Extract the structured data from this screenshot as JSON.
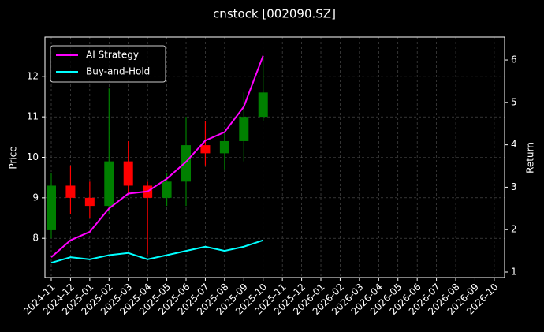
{
  "chart_data": {
    "type": "candlestick",
    "title": "cnstock [002090.SZ]",
    "ylabel": "Price",
    "y2label": "Return",
    "x": [
      "2024-11",
      "2024-12",
      "2025-01",
      "2025-02",
      "2025-03",
      "2025-04",
      "2025-05",
      "2025-06",
      "2025-07",
      "2025-08",
      "2025-09",
      "2025-10"
    ],
    "open": [
      8.2,
      9.3,
      9.0,
      8.8,
      9.9,
      9.3,
      9.0,
      9.4,
      10.3,
      10.1,
      10.4,
      11.0
    ],
    "high": [
      9.6,
      9.8,
      9.4,
      11.7,
      10.4,
      9.4,
      9.6,
      11.0,
      10.9,
      10.6,
      11.6,
      12.5
    ],
    "low": [
      8.0,
      8.6,
      8.5,
      8.6,
      9.1,
      7.6,
      8.8,
      8.8,
      9.8,
      9.7,
      9.9,
      10.9
    ],
    "close": [
      9.3,
      9.0,
      8.8,
      9.9,
      9.3,
      9.0,
      9.4,
      10.3,
      10.1,
      10.4,
      11.0,
      11.6
    ],
    "up_color": "#008000",
    "down_color": "#ff0000",
    "series": [
      {
        "name": "AI Strategy",
        "color": "#ff00ff",
        "axis": "y2",
        "values": [
          1.35,
          1.75,
          1.95,
          2.5,
          2.85,
          2.9,
          3.2,
          3.6,
          4.1,
          4.3,
          4.9,
          6.1
        ]
      },
      {
        "name": "Buy-and-Hold",
        "color": "#00ffff",
        "axis": "y2",
        "values": [
          1.22,
          1.35,
          1.3,
          1.4,
          1.45,
          1.3,
          1.4,
          1.5,
          1.6,
          1.5,
          1.6,
          1.75
        ]
      }
    ],
    "xticks": [
      "2024-11",
      "2024-12",
      "2025-01",
      "2025-02",
      "2025-03",
      "2025-04",
      "2025-05",
      "2025-06",
      "2025-07",
      "2025-08",
      "2025-09",
      "2025-10",
      "2025-11",
      "2025-12",
      "2026-01",
      "2026-02",
      "2026-03",
      "2026-04",
      "2026-05",
      "2026-06",
      "2026-07",
      "2026-08",
      "2026-09",
      "2026-10"
    ],
    "ylim": [
      7.03,
      12.97
    ],
    "yticks": [
      8,
      9,
      10,
      11,
      12
    ],
    "y2lim": [
      0.87,
      6.54
    ],
    "y2ticks": [
      1,
      2,
      3,
      4,
      5,
      6
    ],
    "grid": true,
    "legend": "upper left"
  }
}
